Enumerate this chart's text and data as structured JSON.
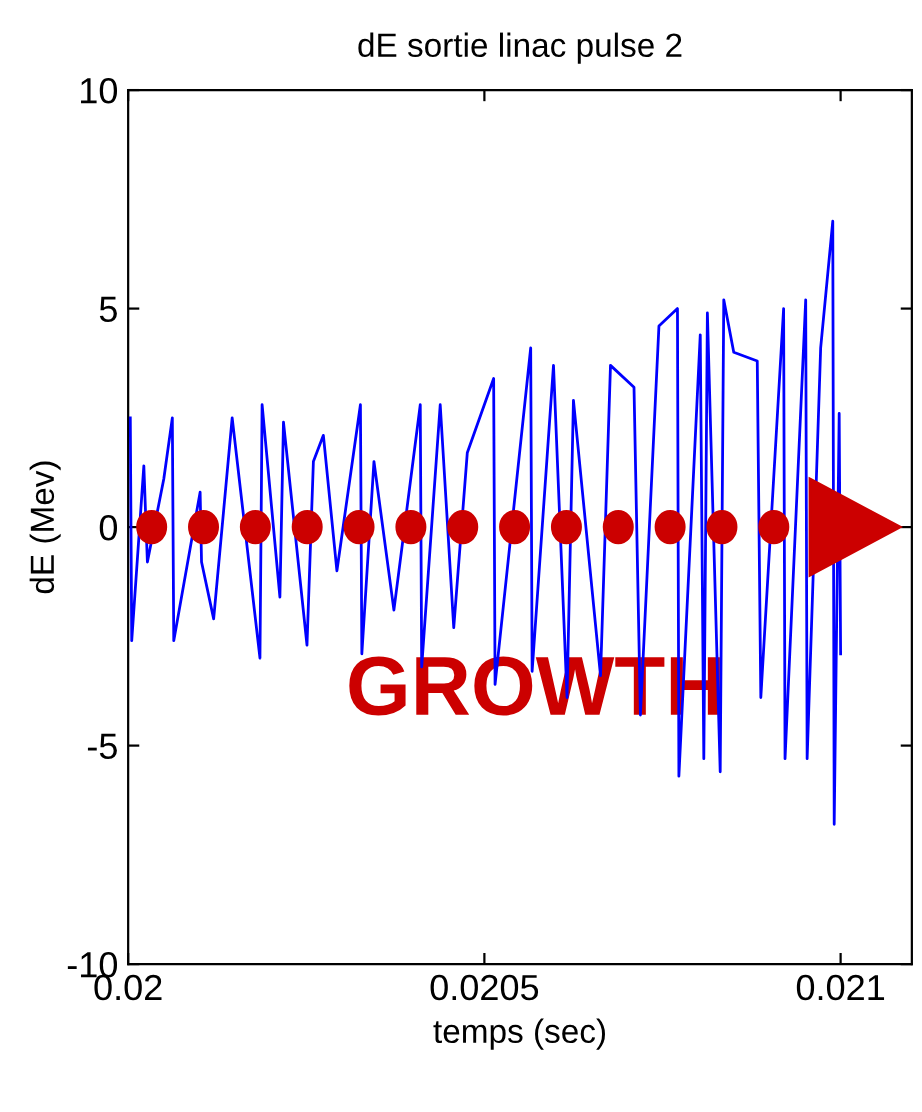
{
  "chart_data": {
    "type": "line",
    "title": "dE sortie linac pulse 2",
    "xlabel": "temps (sec)",
    "ylabel": "dE (Mev)",
    "series": [
      {
        "color": "#0000ff",
        "x": [
          0.020003,
          0.020005,
          0.020022,
          0.020027,
          0.02005,
          0.020062,
          0.020064,
          0.020101,
          0.020103,
          0.02012,
          0.020146,
          0.020185,
          0.020188,
          0.020213,
          0.020218,
          0.020251,
          0.02026,
          0.020274,
          0.020293,
          0.020326,
          0.020328,
          0.020345,
          0.020373,
          0.02041,
          0.020412,
          0.020438,
          0.020457,
          0.020476,
          0.020513,
          0.020515,
          0.020565,
          0.020567,
          0.020597,
          0.020616,
          0.020625,
          0.020663,
          0.020677,
          0.02071,
          0.020719,
          0.020745,
          0.020771,
          0.020773,
          0.020803,
          0.020808,
          0.020813,
          0.020831,
          0.020836,
          0.02085,
          0.020883,
          0.020888,
          0.02092,
          0.020922,
          0.020951,
          0.020953,
          0.020972,
          0.020989,
          0.020991,
          0.020998,
          0.021
        ],
        "values": [
          2.5,
          -2.6,
          1.4,
          -0.8,
          1.1,
          2.5,
          -2.6,
          0.8,
          -0.8,
          -2.1,
          2.5,
          -3.0,
          2.8,
          -1.6,
          2.4,
          -2.7,
          1.5,
          2.1,
          -1.0,
          2.8,
          -2.9,
          1.5,
          -1.9,
          2.8,
          -3.2,
          2.8,
          -2.3,
          1.7,
          3.4,
          -3.6,
          4.1,
          -3.3,
          3.7,
          -3.9,
          2.9,
          -3.4,
          3.7,
          3.2,
          -4.3,
          4.6,
          5.0,
          -5.7,
          4.4,
          -5.3,
          4.9,
          -5.6,
          5.2,
          4.0,
          3.8,
          -3.9,
          5.0,
          -5.3,
          5.2,
          -5.3,
          4.1,
          7.0,
          -6.8,
          2.6,
          -2.9
        ]
      }
    ],
    "xlim": [
      0.02,
      0.0211
    ],
    "xticks": [
      0.02,
      0.0205,
      0.021
    ],
    "ylim": [
      -10,
      10
    ],
    "yticks": [
      -10,
      -5,
      0,
      5,
      10
    ],
    "annotations": [
      "GROWTH"
    ],
    "grid": false,
    "legend": false,
    "marker": "none",
    "line_style": "solid"
  }
}
